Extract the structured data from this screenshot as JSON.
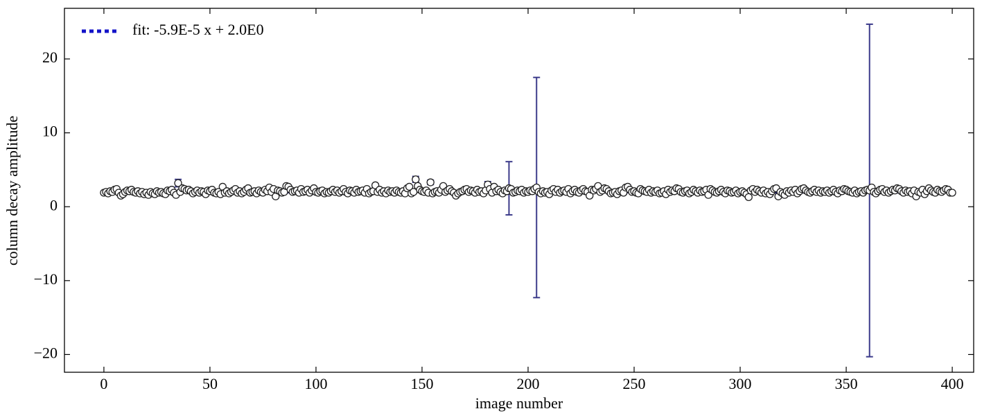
{
  "chart_data": {
    "type": "scatter",
    "xlabel": "image number",
    "ylabel": "column decay amplitude",
    "xlim": [
      -18.6,
      410.1
    ],
    "ylim": [
      -22.4,
      26.85
    ],
    "xticks": [
      0,
      50,
      100,
      150,
      200,
      250,
      300,
      350,
      400
    ],
    "yticks": [
      {
        "value": -20,
        "label": "−20"
      },
      {
        "value": -10,
        "label": "−10"
      },
      0,
      10,
      20
    ],
    "legend": "upper left",
    "fit": {
      "name": "fit: -5.9E-5 x + 2.0E0",
      "color": "#1414c8",
      "x": [
        0,
        400
      ],
      "values": [
        2.0,
        1.9764
      ]
    },
    "series": [
      {
        "color": "#ffffff",
        "edge_color": "#222222",
        "error_color": "#3b3a8a",
        "x": [
          0,
          1,
          2,
          3,
          4,
          5,
          6,
          7,
          8,
          9,
          10,
          11,
          12,
          13,
          14,
          15,
          16,
          17,
          18,
          19,
          20,
          21,
          22,
          23,
          24,
          25,
          26,
          27,
          28,
          29,
          30,
          31,
          32,
          33,
          34,
          35,
          36,
          37,
          38,
          39,
          40,
          41,
          42,
          43,
          44,
          45,
          46,
          47,
          48,
          49,
          50,
          51,
          52,
          53,
          54,
          55,
          56,
          57,
          58,
          59,
          60,
          61,
          62,
          63,
          64,
          65,
          66,
          67,
          68,
          69,
          70,
          71,
          72,
          73,
          74,
          75,
          76,
          77,
          78,
          79,
          80,
          81,
          82,
          83,
          84,
          85,
          86,
          87,
          88,
          89,
          90,
          91,
          92,
          93,
          94,
          95,
          96,
          97,
          98,
          99,
          100,
          101,
          102,
          103,
          104,
          105,
          106,
          107,
          108,
          109,
          110,
          111,
          112,
          113,
          114,
          115,
          116,
          117,
          118,
          119,
          120,
          121,
          122,
          123,
          124,
          125,
          126,
          127,
          128,
          129,
          130,
          131,
          132,
          133,
          134,
          135,
          136,
          137,
          138,
          139,
          140,
          141,
          142,
          143,
          144,
          145,
          146,
          147,
          148,
          149,
          150,
          151,
          152,
          153,
          154,
          155,
          156,
          157,
          158,
          159,
          160,
          161,
          162,
          163,
          164,
          165,
          166,
          167,
          168,
          169,
          170,
          171,
          172,
          173,
          174,
          175,
          176,
          177,
          178,
          179,
          180,
          181,
          182,
          183,
          184,
          185,
          186,
          187,
          188,
          189,
          190,
          191,
          192,
          193,
          194,
          195,
          196,
          197,
          198,
          199,
          200,
          201,
          202,
          203,
          204,
          205,
          206,
          207,
          208,
          209,
          210,
          211,
          212,
          213,
          214,
          215,
          216,
          217,
          218,
          219,
          220,
          221,
          222,
          223,
          224,
          225,
          226,
          227,
          228,
          229,
          230,
          231,
          232,
          233,
          234,
          235,
          236,
          237,
          238,
          239,
          240,
          241,
          242,
          243,
          244,
          245,
          246,
          247,
          248,
          249,
          250,
          251,
          252,
          253,
          254,
          255,
          256,
          257,
          258,
          259,
          260,
          261,
          262,
          263,
          264,
          265,
          266,
          267,
          268,
          269,
          270,
          271,
          272,
          273,
          274,
          275,
          276,
          277,
          278,
          279,
          280,
          281,
          282,
          283,
          284,
          285,
          286,
          287,
          288,
          289,
          290,
          291,
          292,
          293,
          294,
          295,
          296,
          297,
          298,
          299,
          300,
          301,
          302,
          303,
          304,
          305,
          306,
          307,
          308,
          309,
          310,
          311,
          312,
          313,
          314,
          315,
          316,
          317,
          318,
          319,
          320,
          321,
          322,
          323,
          324,
          325,
          326,
          327,
          328,
          329,
          330,
          331,
          332,
          333,
          334,
          335,
          336,
          337,
          338,
          339,
          340,
          341,
          342,
          343,
          344,
          345,
          346,
          347,
          348,
          349,
          350,
          351,
          352,
          353,
          354,
          355,
          356,
          357,
          358,
          359,
          360,
          361,
          362,
          363,
          364,
          365,
          366,
          367,
          368,
          369,
          370,
          371,
          372,
          373,
          374,
          375,
          376,
          377,
          378,
          379,
          380,
          381,
          382,
          383,
          384,
          385,
          386,
          387,
          388,
          389,
          390,
          391,
          392,
          393,
          394,
          395,
          396,
          397,
          398,
          399,
          400
        ],
        "values": [
          1.9,
          2.0,
          1.8,
          2.1,
          2.0,
          2.3,
          2.4,
          1.9,
          1.5,
          1.7,
          2.0,
          2.2,
          2.1,
          2.3,
          2.0,
          1.9,
          2.1,
          1.8,
          2.0,
          1.7,
          1.9,
          1.6,
          2.0,
          1.8,
          1.7,
          2.1,
          1.9,
          2.0,
          1.8,
          1.7,
          2.2,
          2.1,
          2.3,
          1.9,
          1.6,
          3.2,
          2.0,
          2.5,
          2.4,
          2.2,
          2.3,
          2.1,
          1.8,
          2.0,
          2.2,
          1.9,
          2.1,
          2.0,
          1.7,
          2.2,
          2.1,
          2.3,
          1.9,
          1.8,
          2.0,
          1.7,
          2.7,
          1.9,
          2.1,
          1.8,
          2.0,
          2.2,
          2.4,
          1.9,
          2.1,
          1.8,
          2.0,
          2.3,
          2.5,
          1.9,
          2.0,
          2.1,
          1.8,
          2.2,
          2.0,
          1.9,
          2.3,
          2.1,
          2.6,
          2.0,
          2.4,
          1.4,
          2.2,
          2.1,
          1.9,
          2.0,
          2.8,
          2.7,
          2.3,
          2.0,
          2.1,
          2.2,
          1.9,
          2.4,
          2.0,
          2.1,
          2.3,
          1.9,
          2.2,
          2.5,
          2.0,
          1.9,
          2.1,
          2.2,
          1.8,
          2.0,
          1.9,
          2.1,
          2.3,
          2.0,
          2.2,
          1.9,
          2.1,
          2.4,
          2.0,
          1.8,
          2.2,
          2.1,
          1.9,
          2.3,
          2.0,
          2.1,
          2.2,
          1.9,
          2.4,
          1.8,
          2.0,
          2.1,
          2.9,
          2.0,
          2.3,
          1.9,
          2.1,
          1.8,
          2.2,
          2.0,
          2.1,
          1.9,
          2.2,
          2.0,
          1.9,
          2.1,
          1.8,
          2.5,
          2.7,
          1.8,
          2.0,
          3.7,
          2.8,
          2.3,
          2.1,
          2.0,
          2.2,
          1.9,
          3.3,
          1.8,
          2.0,
          2.1,
          1.9,
          2.3,
          2.8,
          2.0,
          2.2,
          2.4,
          2.1,
          1.9,
          1.5,
          1.8,
          2.0,
          2.1,
          2.3,
          2.4,
          2.0,
          2.2,
          2.1,
          1.9,
          2.3,
          2.0,
          2.1,
          1.8,
          2.2,
          3.0,
          2.4,
          1.9,
          2.7,
          2.1,
          2.3,
          2.0,
          1.8,
          2.2,
          2.1,
          2.5,
          2.4,
          1.9,
          2.0,
          2.2,
          2.1,
          2.3,
          1.9,
          2.1,
          2.0,
          2.2,
          2.1,
          2.4,
          2.6,
          2.0,
          1.8,
          2.1,
          1.9,
          2.0,
          1.7,
          2.2,
          2.4,
          2.0,
          2.3,
          1.9,
          2.1,
          2.2,
          2.0,
          2.4,
          1.8,
          2.1,
          2.3,
          2.0,
          1.9,
          2.2,
          2.4,
          2.1,
          2.0,
          1.5,
          2.3,
          2.2,
          2.4,
          2.8,
          2.0,
          2.2,
          2.5,
          2.4,
          2.1,
          1.8,
          1.9,
          2.0,
          1.7,
          2.1,
          2.2,
          1.9,
          2.6,
          2.7,
          2.3,
          2.0,
          2.1,
          1.9,
          1.8,
          2.4,
          2.2,
          2.1,
          2.0,
          2.3,
          1.9,
          2.1,
          2.0,
          2.2,
          1.8,
          1.9,
          2.1,
          1.7,
          2.3,
          2.0,
          2.2,
          2.1,
          2.5,
          2.4,
          2.0,
          1.9,
          2.1,
          2.2,
          1.8,
          2.0,
          2.3,
          2.1,
          1.9,
          2.2,
          2.0,
          2.1,
          2.3,
          1.6,
          2.4,
          2.2,
          2.0,
          1.9,
          2.1,
          2.3,
          2.0,
          1.8,
          2.2,
          2.1,
          1.9,
          2.0,
          2.2,
          1.8,
          2.0,
          2.1,
          1.9,
          1.7,
          1.3,
          2.2,
          2.4,
          2.0,
          2.3,
          2.1,
          1.9,
          2.2,
          1.8,
          2.0,
          1.7,
          2.1,
          2.4,
          2.5,
          1.4,
          2.0,
          1.8,
          1.6,
          2.1,
          1.9,
          2.2,
          2.0,
          2.3,
          1.8,
          2.1,
          2.4,
          2.5,
          2.2,
          2.0,
          1.9,
          2.1,
          2.3,
          2.0,
          2.2,
          1.9,
          2.1,
          2.0,
          2.2,
          1.9,
          2.1,
          2.3,
          2.0,
          1.8,
          2.2,
          2.1,
          2.4,
          2.3,
          2.1,
          2.0,
          1.9,
          2.2,
          1.8,
          2.0,
          2.1,
          1.9,
          2.2,
          2.3,
          2.2,
          2.6,
          2.0,
          1.8,
          2.1,
          2.3,
          2.4,
          2.0,
          2.2,
          1.9,
          2.1,
          2.3,
          2.2,
          2.5,
          2.4,
          2.1,
          1.9,
          2.2,
          2.0,
          2.1,
          1.8,
          2.2,
          1.4,
          2.0,
          1.9,
          2.3,
          1.7,
          2.1,
          2.5,
          2.2,
          2.0,
          1.9,
          2.3,
          2.1,
          2.0,
          2.2,
          2.4,
          2.3,
          1.9,
          1.9
        ],
        "errors": [
          0.2,
          0.2,
          0.2,
          0.2,
          0.2,
          0.2,
          0.2,
          0.2,
          0.2,
          0.2,
          0.2,
          0.2,
          0.2,
          0.2,
          0.2,
          0.2,
          0.2,
          0.2,
          0.2,
          0.2,
          0.2,
          0.2,
          0.2,
          0.2,
          0.2,
          0.2,
          0.2,
          0.2,
          0.2,
          0.2,
          0.2,
          0.2,
          0.2,
          0.2,
          0.2,
          0.5,
          0.2,
          0.2,
          0.2,
          0.2,
          0.2,
          0.2,
          0.2,
          0.2,
          0.2,
          0.2,
          0.2,
          0.2,
          0.2,
          0.2,
          0.2,
          0.2,
          0.2,
          0.2,
          0.2,
          0.2,
          0.2,
          0.2,
          0.2,
          0.2,
          0.2,
          0.2,
          0.2,
          0.2,
          0.2,
          0.2,
          0.2,
          0.2,
          0.2,
          0.2,
          0.2,
          0.2,
          0.2,
          0.2,
          0.2,
          0.2,
          0.2,
          0.2,
          0.2,
          0.2,
          0.2,
          0.2,
          0.2,
          0.2,
          0.2,
          0.2,
          0.2,
          0.2,
          0.2,
          0.2,
          0.2,
          0.2,
          0.2,
          0.2,
          0.2,
          0.2,
          0.2,
          0.2,
          0.2,
          0.2,
          0.2,
          0.2,
          0.2,
          0.2,
          0.2,
          0.2,
          0.2,
          0.2,
          0.2,
          0.2,
          0.2,
          0.2,
          0.2,
          0.2,
          0.2,
          0.2,
          0.2,
          0.2,
          0.2,
          0.2,
          0.2,
          0.2,
          0.2,
          0.2,
          0.2,
          0.2,
          0.2,
          0.2,
          0.2,
          0.2,
          0.2,
          0.2,
          0.2,
          0.2,
          0.2,
          0.2,
          0.2,
          0.2,
          0.2,
          0.2,
          0.2,
          0.2,
          0.2,
          0.2,
          0.2,
          0.2,
          0.2,
          0.4,
          0.2,
          0.2,
          0.2,
          0.2,
          0.2,
          0.2,
          0.3,
          0.2,
          0.2,
          0.2,
          0.2,
          0.2,
          0.2,
          0.2,
          0.2,
          0.2,
          0.2,
          0.2,
          0.2,
          0.2,
          0.2,
          0.2,
          0.2,
          0.2,
          0.2,
          0.2,
          0.2,
          0.2,
          0.2,
          0.2,
          0.2,
          0.2,
          0.2,
          0.4,
          0.2,
          0.2,
          0.2,
          0.2,
          0.2,
          0.2,
          0.2,
          0.2,
          0.2,
          3.6,
          0.2,
          0.2,
          0.2,
          0.2,
          0.2,
          0.2,
          0.2,
          0.2,
          0.2,
          0.2,
          0.2,
          0.2,
          14.9,
          0.2,
          0.2,
          0.2,
          0.2,
          0.2,
          0.2,
          0.2,
          0.2,
          0.2,
          0.2,
          0.2,
          0.2,
          0.2,
          0.2,
          0.2,
          0.2,
          0.2,
          0.2,
          0.2,
          0.2,
          0.2,
          0.2,
          0.2,
          0.2,
          0.2,
          0.2,
          0.2,
          0.2,
          0.2,
          0.2,
          0.2,
          0.2,
          0.2,
          0.2,
          0.2,
          0.2,
          0.2,
          0.2,
          0.2,
          0.2,
          0.2,
          0.2,
          0.2,
          0.2,
          0.2,
          0.2,
          0.2,
          0.2,
          0.2,
          0.2,
          0.2,
          0.2,
          0.2,
          0.2,
          0.2,
          0.2,
          0.2,
          0.2,
          0.2,
          0.2,
          0.2,
          0.2,
          0.2,
          0.2,
          0.2,
          0.2,
          0.2,
          0.2,
          0.2,
          0.2,
          0.2,
          0.2,
          0.2,
          0.2,
          0.2,
          0.2,
          0.2,
          0.2,
          0.2,
          0.2,
          0.2,
          0.2,
          0.2,
          0.2,
          0.2,
          0.2,
          0.2,
          0.2,
          0.2,
          0.2,
          0.2,
          0.2,
          0.2,
          0.2,
          0.2,
          0.2,
          0.2,
          0.2,
          0.2,
          0.2,
          0.2,
          0.2,
          0.2,
          0.2,
          0.2,
          0.2,
          0.2,
          0.2,
          0.2,
          0.2,
          0.2,
          0.2,
          0.2,
          0.2,
          0.2,
          0.2,
          0.2,
          0.2,
          0.2,
          0.2,
          0.2,
          0.2,
          0.2,
          0.2,
          0.2,
          0.2,
          0.2,
          0.2,
          0.2,
          0.2,
          0.2,
          0.2,
          0.2,
          0.2,
          0.2,
          0.2,
          0.2,
          0.2,
          0.2,
          0.2,
          0.2,
          0.2,
          0.2,
          0.2,
          0.2,
          0.2,
          0.2,
          0.2,
          0.2,
          0.2,
          0.2,
          0.2,
          0.2,
          0.2,
          0.2,
          0.2,
          22.5,
          0.2,
          0.2,
          0.2,
          0.2,
          0.2,
          0.2,
          0.2,
          0.2,
          0.2,
          0.2,
          0.2,
          0.2,
          0.2,
          0.2,
          0.2,
          0.2,
          0.2,
          0.2,
          0.2,
          0.2,
          0.2,
          0.2,
          0.2,
          0.2,
          0.2,
          0.2,
          0.2,
          0.2,
          0.2,
          0.2,
          0.2,
          0.2,
          0.2,
          0.2,
          0.2,
          0.2,
          0.2,
          0.2,
          0.2
        ]
      }
    ]
  }
}
